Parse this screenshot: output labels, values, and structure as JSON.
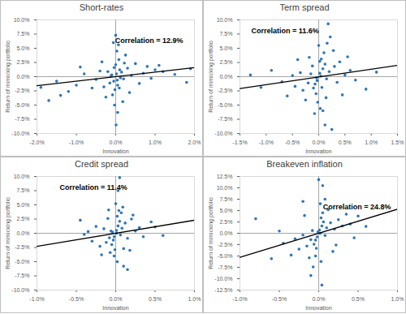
{
  "chart_data": [
    {
      "type": "scatter",
      "title": "Short-rates",
      "x_label": "Innovation",
      "y_label": "Return of mimicking portfolio",
      "annotation": "Correlation = 12.9%",
      "color": "#2e75b6",
      "xlim": [
        -2.0,
        2.0
      ],
      "xticks": [
        {
          "value": -2.0,
          "label": "-2.0%"
        },
        {
          "value": -1.0,
          "label": "-1.0%"
        },
        {
          "value": 0,
          "label": "0.0%"
        },
        {
          "value": 1.0,
          "label": "1.0%"
        },
        {
          "value": 2.0,
          "label": "2.0%"
        }
      ],
      "ylim": [
        -10.0,
        10.0
      ],
      "yticks": [
        {
          "value": -10.0,
          "label": "-10.0%"
        },
        {
          "value": -7.5,
          "label": "-7.5%"
        },
        {
          "value": -5.0,
          "label": "-5.0%"
        },
        {
          "value": -2.5,
          "label": "-2.5%"
        },
        {
          "value": 0,
          "label": "0.0%"
        },
        {
          "value": 2.5,
          "label": "2.5%"
        },
        {
          "value": 5.0,
          "label": "5.0%"
        },
        {
          "value": 7.5,
          "label": "7.5%"
        },
        {
          "value": 10.0,
          "label": "10.0%"
        }
      ],
      "points": [
        [
          0.02,
          0.5
        ],
        [
          -0.05,
          -0.8
        ],
        [
          0.1,
          1.2
        ],
        [
          -0.1,
          0.3
        ],
        [
          0.05,
          -1.5
        ],
        [
          0.0,
          2.1
        ],
        [
          -0.02,
          -2.3
        ],
        [
          0.15,
          0.8
        ],
        [
          -0.15,
          -1.1
        ],
        [
          0.2,
          -0.4
        ],
        [
          -0.2,
          0.9
        ],
        [
          0.08,
          3.0
        ],
        [
          -0.08,
          -3.2
        ],
        [
          0.03,
          4.5
        ],
        [
          0.0,
          7.3
        ],
        [
          -0.03,
          -5.0
        ],
        [
          0.01,
          -8.5
        ],
        [
          0.05,
          -6.3
        ],
        [
          0.3,
          1.5
        ],
        [
          -0.3,
          -1.8
        ],
        [
          0.4,
          0.2
        ],
        [
          -0.4,
          1.0
        ],
        [
          0.5,
          2.3
        ],
        [
          -0.5,
          -0.5
        ],
        [
          0.6,
          -1.2
        ],
        [
          -0.6,
          -2.0
        ],
        [
          0.8,
          1.8
        ],
        [
          -0.8,
          0.5
        ],
        [
          1.0,
          1.2
        ],
        [
          -1.0,
          -1.5
        ],
        [
          1.2,
          0.9
        ],
        [
          -1.2,
          -2.6
        ],
        [
          1.5,
          0.4
        ],
        [
          -1.5,
          -0.8
        ],
        [
          1.8,
          -1.0
        ],
        [
          -1.7,
          -4.2
        ],
        [
          1.9,
          1.4
        ],
        [
          -1.4,
          -3.3
        ],
        [
          0.12,
          -0.2
        ],
        [
          -0.12,
          0.1
        ],
        [
          0.25,
          3.8
        ],
        [
          -0.25,
          -3.6
        ],
        [
          0.07,
          5.6
        ],
        [
          -0.06,
          6.0
        ],
        [
          0.18,
          -4.4
        ],
        [
          0.35,
          -2.8
        ],
        [
          -0.35,
          2.6
        ],
        [
          0.9,
          -0.3
        ],
        [
          -0.9,
          1.7
        ],
        [
          0.7,
          0.6
        ],
        [
          1.1,
          2.0
        ],
        [
          -1.9,
          -1.9
        ],
        [
          0.04,
          -0.6
        ],
        [
          -0.04,
          1.6
        ],
        [
          0.09,
          -2.0
        ],
        [
          0.22,
          2.4
        ]
      ],
      "trendline": {
        "x": [
          -2.0,
          2.0
        ],
        "y": [
          -1.6,
          1.6
        ]
      }
    },
    {
      "type": "scatter",
      "title": "Term spread",
      "x_label": "Innovation",
      "y_label": "Return of mimicking portfolio",
      "annotation": "Correlation = 11.6%",
      "color": "#2e75b6",
      "xlim": [
        -1.5,
        1.5
      ],
      "xticks": [
        {
          "value": -1.5,
          "label": "-1.5%"
        },
        {
          "value": -1.0,
          "label": "-1.0%"
        },
        {
          "value": -0.5,
          "label": "-0.5%"
        },
        {
          "value": 0,
          "label": "0.0%"
        },
        {
          "value": 0.5,
          "label": "0.5%"
        },
        {
          "value": 1.0,
          "label": "1.0%"
        },
        {
          "value": 1.5,
          "label": "1.5%"
        }
      ],
      "ylim": [
        -10.0,
        10.0
      ],
      "yticks": [
        {
          "value": -10.0,
          "label": "-10.0%"
        },
        {
          "value": -7.5,
          "label": "-7.5%"
        },
        {
          "value": -5.0,
          "label": "-5.0%"
        },
        {
          "value": -2.5,
          "label": "-2.5%"
        },
        {
          "value": 0,
          "label": "0.0%"
        },
        {
          "value": 2.5,
          "label": "2.5%"
        },
        {
          "value": 5.0,
          "label": "5.0%"
        },
        {
          "value": 7.5,
          "label": "7.5%"
        },
        {
          "value": 10.0,
          "label": "10.0%"
        }
      ],
      "points": [
        [
          0.02,
          0.6
        ],
        [
          -0.03,
          -0.7
        ],
        [
          0.08,
          1.4
        ],
        [
          -0.07,
          -1.3
        ],
        [
          0.12,
          2.2
        ],
        [
          -0.1,
          -2.0
        ],
        [
          0.05,
          3.1
        ],
        [
          -0.05,
          -3.0
        ],
        [
          0.15,
          -0.4
        ],
        [
          -0.15,
          0.5
        ],
        [
          0.2,
          0.9
        ],
        [
          -0.2,
          -1.1
        ],
        [
          0.1,
          4.2
        ],
        [
          0.0,
          5.5
        ],
        [
          0.18,
          9.3
        ],
        [
          0.22,
          7.0
        ],
        [
          -0.02,
          -4.5
        ],
        [
          0.03,
          -5.6
        ],
        [
          -0.08,
          -6.5
        ],
        [
          0.12,
          -8.5
        ],
        [
          0.25,
          -9.3
        ],
        [
          0.3,
          1.8
        ],
        [
          -0.3,
          -2.4
        ],
        [
          0.35,
          -1.0
        ],
        [
          -0.35,
          0.7
        ],
        [
          0.4,
          2.6
        ],
        [
          -0.45,
          -1.7
        ],
        [
          0.5,
          0.3
        ],
        [
          -0.5,
          0.2
        ],
        [
          0.6,
          1.1
        ],
        [
          -0.6,
          -3.4
        ],
        [
          0.7,
          -0.6
        ],
        [
          -0.7,
          -0.9
        ],
        [
          0.9,
          -2.2
        ],
        [
          -0.9,
          1.1
        ],
        [
          -1.1,
          -1.9
        ],
        [
          1.1,
          0.8
        ],
        [
          -1.3,
          0.3
        ],
        [
          0.06,
          -1.9
        ],
        [
          -0.12,
          1.9
        ],
        [
          0.14,
          -3.7
        ],
        [
          -0.18,
          3.4
        ],
        [
          0.28,
          4.6
        ],
        [
          -0.25,
          -4.1
        ],
        [
          0.04,
          0.1
        ],
        [
          -0.04,
          -0.2
        ],
        [
          0.16,
          5.9
        ],
        [
          0.08,
          -6.0
        ],
        [
          0.45,
          -3.2
        ],
        [
          -0.4,
          3.0
        ],
        [
          0.55,
          3.5
        ],
        [
          0.02,
          2.7
        ]
      ],
      "trendline": {
        "x": [
          -1.5,
          1.5
        ],
        "y": [
          -2.1,
          2.0
        ]
      }
    },
    {
      "type": "scatter",
      "title": "Credit spread",
      "x_label": "Innovation",
      "y_label": "Return of mimicking portfolio",
      "annotation": "Correlation = 11.4%",
      "color": "#2e75b6",
      "xlim": [
        -1.0,
        1.0
      ],
      "xticks": [
        {
          "value": -1.0,
          "label": "-1.0%"
        },
        {
          "value": -0.5,
          "label": "-0.5%"
        },
        {
          "value": 0,
          "label": "0.0%"
        },
        {
          "value": 0.5,
          "label": "0.5%"
        },
        {
          "value": 1.0,
          "label": "1.0%"
        }
      ],
      "ylim": [
        -10.0,
        10.0
      ],
      "yticks": [
        {
          "value": -10.0,
          "label": "-10.0%"
        },
        {
          "value": -7.5,
          "label": "-7.5%"
        },
        {
          "value": -5.0,
          "label": "-5.0%"
        },
        {
          "value": -2.5,
          "label": "-2.5%"
        },
        {
          "value": 0,
          "label": "0.0%"
        },
        {
          "value": 2.5,
          "label": "2.5%"
        },
        {
          "value": 5.0,
          "label": "5.0%"
        },
        {
          "value": 7.5,
          "label": "7.5%"
        },
        {
          "value": 10.0,
          "label": "10.0%"
        }
      ],
      "points": [
        [
          0.01,
          0.5
        ],
        [
          -0.02,
          -0.6
        ],
        [
          0.03,
          1.3
        ],
        [
          -0.03,
          -1.2
        ],
        [
          0.05,
          2.1
        ],
        [
          -0.05,
          -2.0
        ],
        [
          0.02,
          3.0
        ],
        [
          -0.01,
          -2.9
        ],
        [
          0.06,
          -0.3
        ],
        [
          -0.06,
          0.4
        ],
        [
          0.08,
          0.9
        ],
        [
          -0.08,
          -0.8
        ],
        [
          0.04,
          4.0
        ],
        [
          0.0,
          5.2
        ],
        [
          0.03,
          7.5
        ],
        [
          0.05,
          9.8
        ],
        [
          -0.02,
          -4.0
        ],
        [
          0.02,
          -5.0
        ],
        [
          0.1,
          -5.8
        ],
        [
          0.15,
          -6.4
        ],
        [
          0.12,
          1.8
        ],
        [
          -0.12,
          -1.6
        ],
        [
          0.15,
          -0.9
        ],
        [
          -0.15,
          0.8
        ],
        [
          0.2,
          2.5
        ],
        [
          -0.2,
          -2.3
        ],
        [
          0.25,
          0.4
        ],
        [
          -0.25,
          1.2
        ],
        [
          0.3,
          1.0
        ],
        [
          -0.3,
          -1.4
        ],
        [
          0.35,
          -0.6
        ],
        [
          -0.35,
          0.3
        ],
        [
          0.45,
          2.0
        ],
        [
          -0.4,
          -0.2
        ],
        [
          0.5,
          1.1
        ],
        [
          -0.45,
          2.3
        ],
        [
          -0.1,
          2.6
        ],
        [
          0.1,
          -2.7
        ],
        [
          0.07,
          3.6
        ],
        [
          -0.07,
          -3.4
        ],
        [
          0.01,
          0.0
        ],
        [
          -0.04,
          0.2
        ],
        [
          0.09,
          4.6
        ],
        [
          -0.09,
          4.1
        ],
        [
          0.18,
          -3.0
        ],
        [
          -0.18,
          -3.8
        ],
        [
          0.22,
          3.2
        ],
        [
          0.6,
          -0.4
        ]
      ],
      "trendline": {
        "x": [
          -1.0,
          1.0
        ],
        "y": [
          -2.3,
          2.3
        ]
      }
    },
    {
      "type": "scatter",
      "title": "Breakeven inflation",
      "x_label": "Innovation",
      "y_label": "Return of mimicking portfolio",
      "annotation": "Correlation = 24.8%",
      "color": "#2e75b6",
      "xlim": [
        -1.0,
        1.0
      ],
      "xticks": [
        {
          "value": -1.0,
          "label": "-1.0%"
        },
        {
          "value": -0.5,
          "label": "-0.5%"
        },
        {
          "value": 0,
          "label": "0.0%"
        },
        {
          "value": 0.5,
          "label": "0.5%"
        },
        {
          "value": 1.0,
          "label": "1.0%"
        }
      ],
      "ylim": [
        -12.5,
        12.5
      ],
      "yticks": [
        {
          "value": -12.5,
          "label": "-12.5%"
        },
        {
          "value": -10.0,
          "label": "-10.0%"
        },
        {
          "value": -7.5,
          "label": "-7.5%"
        },
        {
          "value": -5.0,
          "label": "-5.0%"
        },
        {
          "value": -2.5,
          "label": "-2.5%"
        },
        {
          "value": 0,
          "label": "0.0%"
        },
        {
          "value": 2.5,
          "label": "2.5%"
        },
        {
          "value": 5.0,
          "label": "5.0%"
        },
        {
          "value": 7.5,
          "label": "7.5%"
        },
        {
          "value": 10.0,
          "label": "10.0%"
        },
        {
          "value": 12.5,
          "label": "12.5%"
        }
      ],
      "points": [
        [
          0.01,
          0.7
        ],
        [
          -0.02,
          -0.8
        ],
        [
          0.04,
          1.6
        ],
        [
          -0.04,
          -1.5
        ],
        [
          0.06,
          2.5
        ],
        [
          -0.06,
          -2.4
        ],
        [
          0.03,
          3.4
        ],
        [
          -0.03,
          -3.3
        ],
        [
          0.08,
          -0.5
        ],
        [
          -0.08,
          0.6
        ],
        [
          0.1,
          1.2
        ],
        [
          -0.1,
          -1.4
        ],
        [
          0.05,
          4.5
        ],
        [
          0.02,
          6.5
        ],
        [
          0.0,
          11.8
        ],
        [
          0.05,
          10.5
        ],
        [
          -0.04,
          -5.0
        ],
        [
          0.03,
          -6.2
        ],
        [
          -0.1,
          -9.3
        ],
        [
          0.04,
          -11.4
        ],
        [
          0.15,
          2.3
        ],
        [
          -0.15,
          -2.8
        ],
        [
          0.2,
          0.9
        ],
        [
          -0.2,
          -0.4
        ],
        [
          0.25,
          3.0
        ],
        [
          -0.25,
          -3.5
        ],
        [
          0.3,
          1.6
        ],
        [
          -0.3,
          -1.2
        ],
        [
          0.35,
          4.2
        ],
        [
          -0.35,
          -4.8
        ],
        [
          0.4,
          2.0
        ],
        [
          -0.45,
          -2.2
        ],
        [
          0.5,
          3.8
        ],
        [
          -0.5,
          0.5
        ],
        [
          -0.8,
          3.2
        ],
        [
          -0.6,
          -5.6
        ],
        [
          0.45,
          -1.0
        ],
        [
          0.12,
          5.2
        ],
        [
          -0.12,
          -5.4
        ],
        [
          0.18,
          -4.0
        ],
        [
          -0.18,
          3.9
        ],
        [
          0.02,
          0.0
        ],
        [
          -0.01,
          0.3
        ],
        [
          0.08,
          7.5
        ],
        [
          -0.07,
          -7.4
        ],
        [
          0.22,
          -2.6
        ],
        [
          0.6,
          1.5
        ],
        [
          -0.2,
          7.0
        ]
      ],
      "trendline": {
        "x": [
          -1.0,
          1.0
        ],
        "y": [
          -5.3,
          5.3
        ]
      }
    }
  ]
}
